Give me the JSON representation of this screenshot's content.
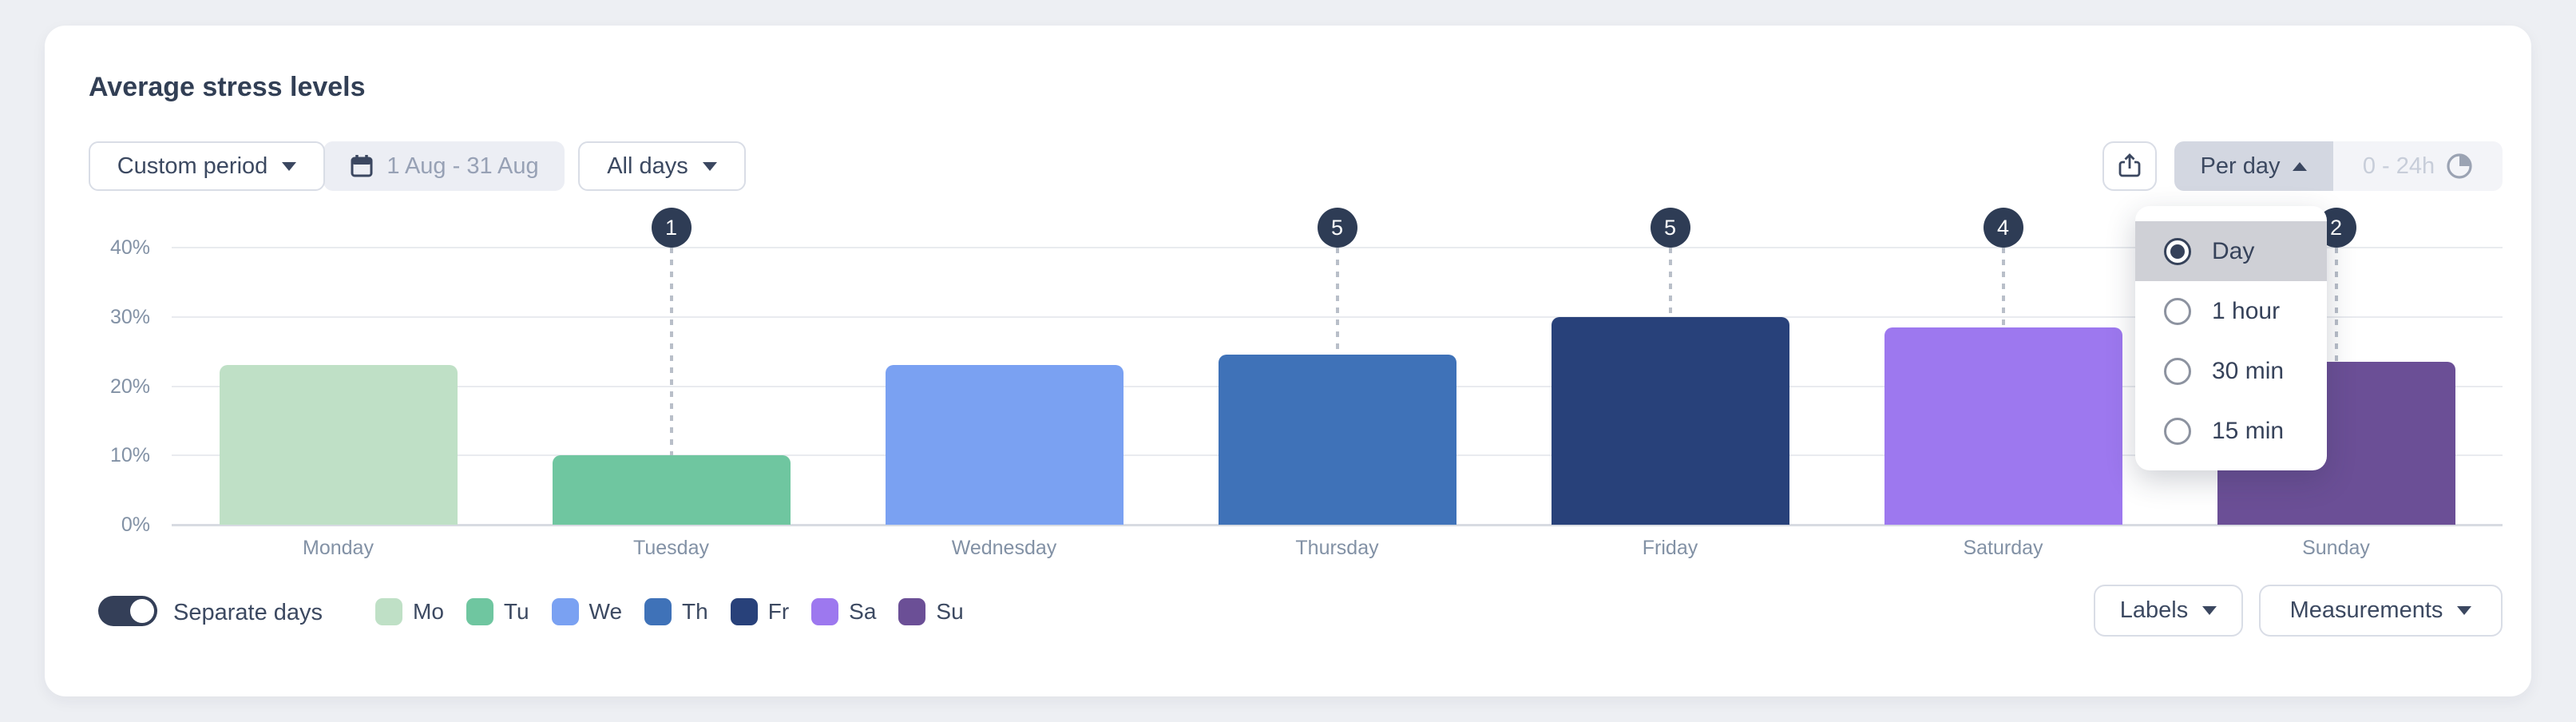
{
  "page": {
    "title": "Average stress levels"
  },
  "toolbar": {
    "period_selector": {
      "label": "Custom period"
    },
    "date_range": {
      "label": "1 Aug - 31 Aug"
    },
    "day_filter": {
      "label": "All days"
    },
    "granularity_selector": {
      "label": "Per day"
    },
    "time_range": {
      "label": "0 - 24h"
    }
  },
  "granularity_menu": {
    "options": [
      {
        "label": "Day",
        "selected": true
      },
      {
        "label": "1 hour",
        "selected": false
      },
      {
        "label": "30 min",
        "selected": false
      },
      {
        "label": "15 min",
        "selected": false
      }
    ]
  },
  "chart_data": {
    "type": "bar",
    "title": "Average stress levels",
    "categories": [
      "Monday",
      "Tuesday",
      "Wednesday",
      "Thursday",
      "Friday",
      "Saturday",
      "Sunday"
    ],
    "values": [
      23,
      10,
      23,
      24.5,
      30,
      28.5,
      23.5
    ],
    "unit": "%",
    "badges": [
      null,
      1,
      null,
      5,
      5,
      4,
      2
    ],
    "bar_colors": [
      "#bfe0c6",
      "#6fc6a0",
      "#7aa1f2",
      "#3f72b8",
      "#28417a",
      "#9d78ef",
      "#6b4f96"
    ],
    "y_ticks": [
      "0%",
      "10%",
      "20%",
      "30%",
      "40%"
    ],
    "ylim": [
      0,
      40
    ],
    "grid": true,
    "legend_position": "bottom"
  },
  "footer": {
    "separate_days": {
      "label": "Separate days",
      "on": true
    },
    "legend": [
      {
        "label": "Mo",
        "color": "#bfe0c6"
      },
      {
        "label": "Tu",
        "color": "#6fc6a0"
      },
      {
        "label": "We",
        "color": "#7aa1f2"
      },
      {
        "label": "Th",
        "color": "#3f72b8"
      },
      {
        "label": "Fr",
        "color": "#28417a"
      },
      {
        "label": "Sa",
        "color": "#9d78ef"
      },
      {
        "label": "Su",
        "color": "#6b4f96"
      }
    ],
    "labels_button": {
      "label": "Labels"
    },
    "measurements_button": {
      "label": "Measurements"
    }
  },
  "colors": {
    "badge": "#2e3c55",
    "accent_text": "#3c4961",
    "axis_text": "#8291a5",
    "menu_highlight": "#cfd0d6",
    "page_background": "#edeff3"
  }
}
